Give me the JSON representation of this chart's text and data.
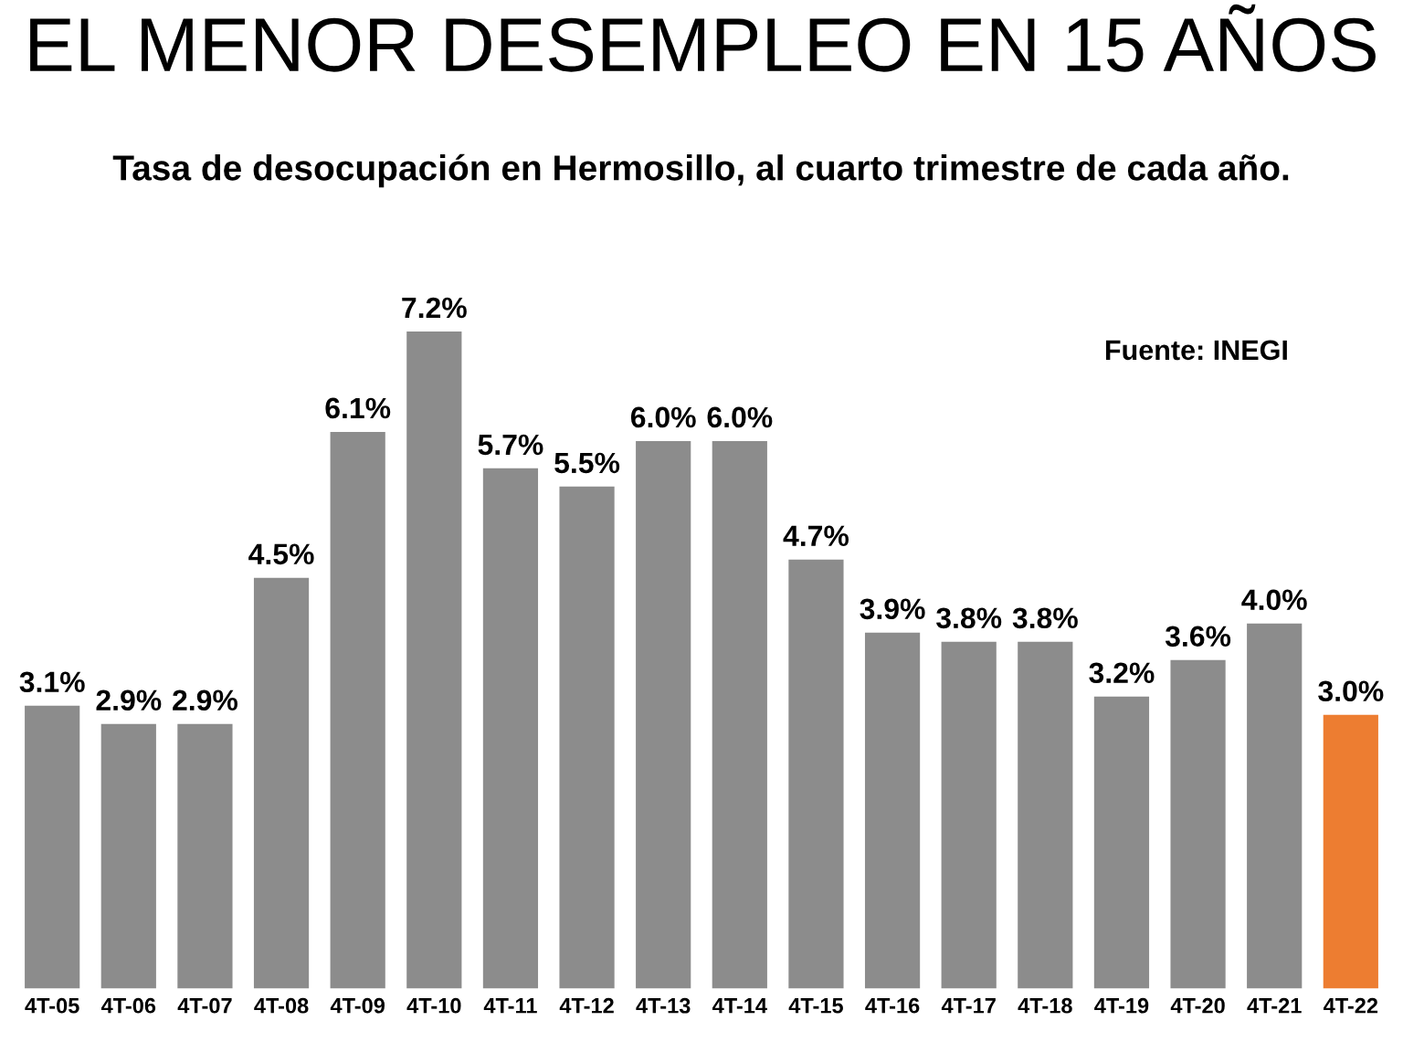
{
  "chart_data": {
    "type": "bar",
    "title": "EL MENOR DESEMPLEO EN 15 AÑOS",
    "subtitle": "Tasa de desocupación en Hermosillo, al cuarto trimestre de cada año.",
    "categories": [
      "4T-05",
      "4T-06",
      "4T-07",
      "4T-08",
      "4T-09",
      "4T-10",
      "4T-11",
      "4T-12",
      "4T-13",
      "4T-14",
      "4T-15",
      "4T-16",
      "4T-17",
      "4T-18",
      "4T-19",
      "4T-20",
      "4T-21",
      "4T-22"
    ],
    "values": [
      3.1,
      2.9,
      2.9,
      4.5,
      6.1,
      7.2,
      5.7,
      5.5,
      6.0,
      6.0,
      4.7,
      3.9,
      3.8,
      3.8,
      3.2,
      3.6,
      4.0,
      3.0
    ],
    "value_labels": [
      "3.1%",
      "2.9%",
      "2.9%",
      "4.5%",
      "6.1%",
      "7.2%",
      "5.7%",
      "5.5%",
      "6.0%",
      "6.0%",
      "4.7%",
      "3.9%",
      "3.8%",
      "3.8%",
      "3.2%",
      "3.6%",
      "4.0%",
      "3.0%"
    ],
    "colors": [
      "#8c8c8c",
      "#8c8c8c",
      "#8c8c8c",
      "#8c8c8c",
      "#8c8c8c",
      "#8c8c8c",
      "#8c8c8c",
      "#8c8c8c",
      "#8c8c8c",
      "#8c8c8c",
      "#8c8c8c",
      "#8c8c8c",
      "#8c8c8c",
      "#8c8c8c",
      "#8c8c8c",
      "#8c8c8c",
      "#8c8c8c",
      "#ed7d31"
    ],
    "annotations": [
      "Fuente: INEGI"
    ],
    "grid": false,
    "legend": false
  }
}
